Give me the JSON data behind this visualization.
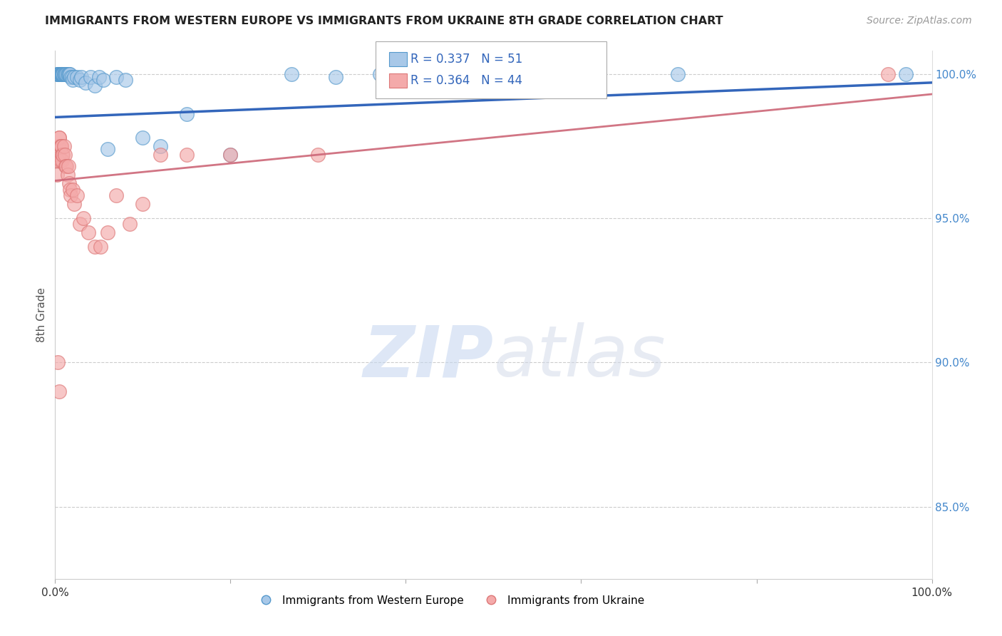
{
  "title": "IMMIGRANTS FROM WESTERN EUROPE VS IMMIGRANTS FROM UKRAINE 8TH GRADE CORRELATION CHART",
  "source": "Source: ZipAtlas.com",
  "ylabel": "8th Grade",
  "xlim": [
    0.0,
    1.0
  ],
  "ylim": [
    0.825,
    1.008
  ],
  "legend_labels": [
    "Immigrants from Western Europe",
    "Immigrants from Ukraine"
  ],
  "blue_color": "#a8c8e8",
  "blue_edge_color": "#5599cc",
  "pink_color": "#f4aaaa",
  "pink_edge_color": "#dd7777",
  "blue_line_color": "#3366bb",
  "pink_line_color": "#cc6677",
  "R_blue": 0.337,
  "N_blue": 51,
  "R_pink": 0.364,
  "N_pink": 44,
  "blue_x": [
    0.002,
    0.003,
    0.004,
    0.004,
    0.004,
    0.005,
    0.005,
    0.005,
    0.006,
    0.006,
    0.007,
    0.007,
    0.007,
    0.008,
    0.008,
    0.009,
    0.009,
    0.01,
    0.01,
    0.011,
    0.012,
    0.013,
    0.014,
    0.015,
    0.016,
    0.017,
    0.018,
    0.019,
    0.02,
    0.022,
    0.025,
    0.028,
    0.03,
    0.035,
    0.04,
    0.045,
    0.05,
    0.055,
    0.06,
    0.07,
    0.08,
    0.1,
    0.12,
    0.15,
    0.2,
    0.27,
    0.32,
    0.37,
    0.55,
    0.71,
    0.97
  ],
  "blue_y": [
    1.0,
    1.0,
    1.0,
    1.0,
    1.0,
    1.0,
    1.0,
    1.0,
    1.0,
    1.0,
    1.0,
    1.0,
    1.0,
    1.0,
    1.0,
    1.0,
    1.0,
    1.0,
    1.0,
    1.0,
    1.0,
    1.0,
    1.0,
    1.0,
    1.0,
    1.0,
    0.999,
    0.999,
    0.998,
    0.999,
    0.999,
    0.998,
    0.999,
    0.997,
    0.999,
    0.996,
    0.999,
    0.998,
    0.974,
    0.999,
    0.998,
    0.978,
    0.975,
    0.986,
    0.972,
    1.0,
    0.999,
    1.0,
    1.0,
    1.0,
    1.0
  ],
  "pink_x": [
    0.002,
    0.003,
    0.003,
    0.004,
    0.004,
    0.005,
    0.005,
    0.006,
    0.006,
    0.007,
    0.007,
    0.008,
    0.008,
    0.009,
    0.01,
    0.011,
    0.012,
    0.013,
    0.014,
    0.015,
    0.016,
    0.017,
    0.018,
    0.02,
    0.022,
    0.025,
    0.028,
    0.032,
    0.038,
    0.045,
    0.052,
    0.06,
    0.07,
    0.085,
    0.1,
    0.12,
    0.15,
    0.2,
    0.3,
    0.45,
    0.6,
    0.95,
    0.003,
    0.005
  ],
  "pink_y": [
    0.965,
    0.97,
    0.97,
    0.972,
    0.975,
    0.978,
    0.978,
    0.97,
    0.975,
    0.975,
    0.975,
    0.972,
    0.97,
    0.972,
    0.975,
    0.972,
    0.968,
    0.968,
    0.965,
    0.968,
    0.962,
    0.96,
    0.958,
    0.96,
    0.955,
    0.958,
    0.948,
    0.95,
    0.945,
    0.94,
    0.94,
    0.945,
    0.958,
    0.948,
    0.955,
    0.972,
    0.972,
    0.972,
    0.972,
    0.998,
    0.998,
    1.0,
    0.9,
    0.89
  ],
  "watermark_zip": "ZIP",
  "watermark_atlas": "atlas",
  "background_color": "#ffffff"
}
